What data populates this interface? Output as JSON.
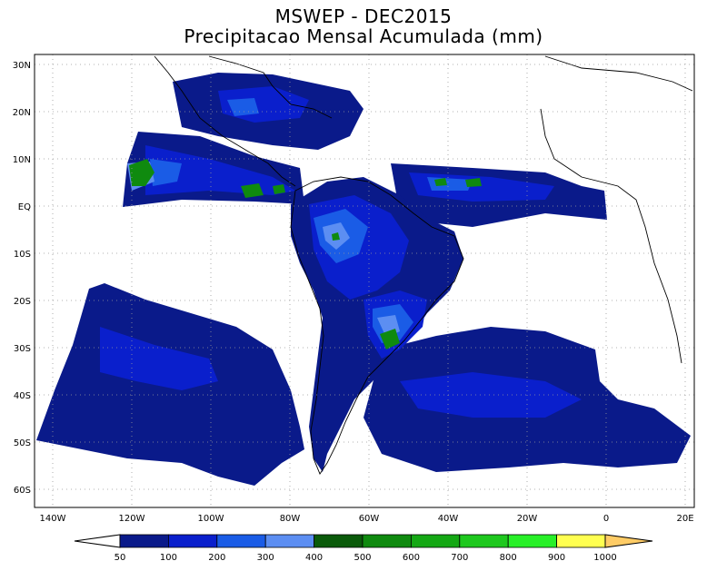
{
  "title": "MSWEP - DEC2015",
  "subtitle": "Precipitacao Mensal Acumulada (mm)",
  "lat_ticks": [
    "30N",
    "20N",
    "10N",
    "EQ",
    "10S",
    "20S",
    "30S",
    "40S",
    "50S",
    "60S"
  ],
  "lon_ticks": [
    "140W",
    "120W",
    "100W",
    "80W",
    "60W",
    "40W",
    "20W",
    "0",
    "20E"
  ],
  "colorbar": {
    "labels": [
      "50",
      "100",
      "200",
      "300",
      "400",
      "500",
      "600",
      "700",
      "800",
      "900",
      "1000"
    ],
    "colors": [
      "#0a1a8a",
      "#0a1fcc",
      "#1a5ce6",
      "#5c8ef2",
      "#0a5a0a",
      "#0f8a0f",
      "#14a814",
      "#1ec81e",
      "#28f028",
      "#ffff50",
      "#ffcc66"
    ],
    "under_color": "#ffffff",
    "over_color": "#ffcc66"
  },
  "field_colors": {
    "base": "#0a1a8a",
    "mid": "#0a1fcc",
    "light": "#1a5ce6",
    "pale": "#5c8ef2",
    "green_dark": "#0a5a0a",
    "green": "#14a814"
  }
}
